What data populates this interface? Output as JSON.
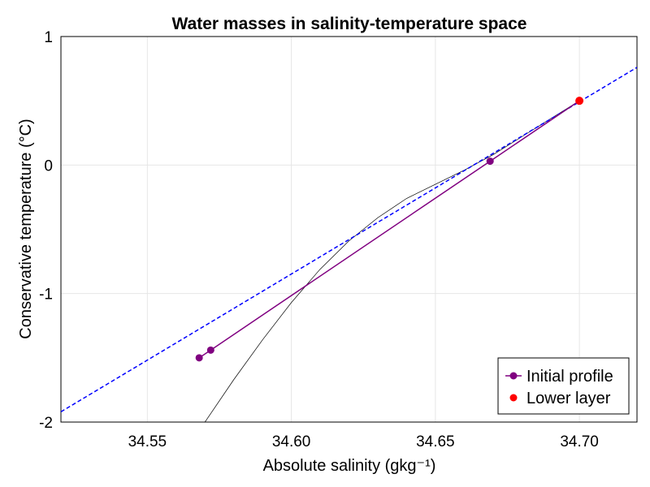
{
  "chart_data": {
    "type": "line",
    "title": "Water masses in salinity-temperature space",
    "xlabel": "Absolute salinity (gkg⁻¹)",
    "ylabel": "Conservative temperature (°C)",
    "xlim": [
      34.52,
      34.72
    ],
    "ylim": [
      -2,
      1
    ],
    "x_ticks": [
      34.55,
      34.6,
      34.65,
      34.7
    ],
    "x_tick_labels": [
      "34.55",
      "34.60",
      "34.65",
      "34.70"
    ],
    "y_ticks": [
      -2,
      -1,
      0,
      1
    ],
    "y_tick_labels": [
      "-2",
      "-1",
      "0",
      "1"
    ],
    "grid": true,
    "legend_position": "bottom-right",
    "series": [
      {
        "name": "Initial profile",
        "kind": "line+markers",
        "color": "#800080",
        "x": [
          34.568,
          34.572,
          34.669,
          34.7
        ],
        "y": [
          -1.5,
          -1.44,
          0.03,
          0.5
        ]
      },
      {
        "name": "Lower layer",
        "kind": "markers",
        "color": "#ff0000",
        "x": [
          34.7
        ],
        "y": [
          0.5
        ]
      },
      {
        "kind": "dashed-line",
        "color": "#0000ff",
        "x": [
          34.52,
          34.72
        ],
        "y": [
          -1.92,
          0.76
        ]
      },
      {
        "kind": "thin-curve",
        "color": "#000000",
        "x": [
          34.57,
          34.58,
          34.59,
          34.6,
          34.61,
          34.62,
          34.63,
          34.64,
          34.65,
          34.66,
          34.67,
          34.68,
          34.69,
          34.7
        ],
        "y": [
          -2.0,
          -1.67,
          -1.36,
          -1.07,
          -0.81,
          -0.59,
          -0.41,
          -0.26,
          -0.15,
          -0.04,
          0.08,
          0.22,
          0.36,
          0.5
        ]
      }
    ]
  }
}
